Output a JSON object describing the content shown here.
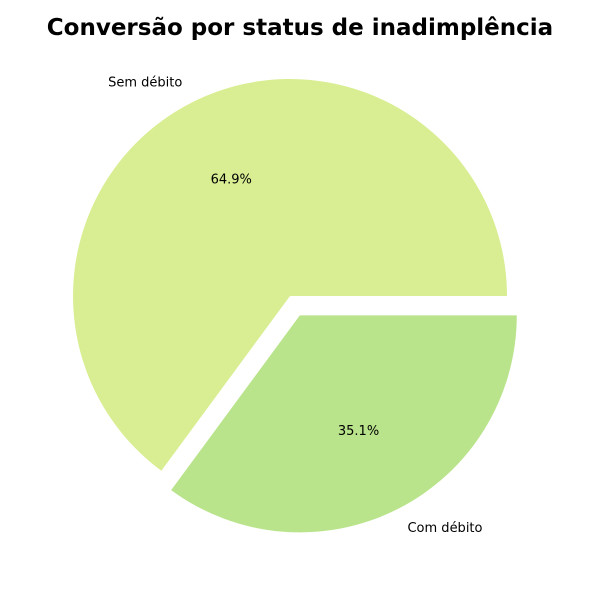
{
  "chart_data": {
    "type": "pie",
    "title": "Conversão por status de inadimplência",
    "slices": [
      {
        "label": "Sem débito",
        "value": 64.9,
        "pct_label": "64.9%",
        "color": "#d9ee93",
        "explode": false
      },
      {
        "label": "Com débito",
        "value": 35.1,
        "pct_label": "35.1%",
        "color": "#b9e48c",
        "explode": true
      }
    ],
    "start_angle_deg": 0,
    "direction": "counterclockwise"
  }
}
